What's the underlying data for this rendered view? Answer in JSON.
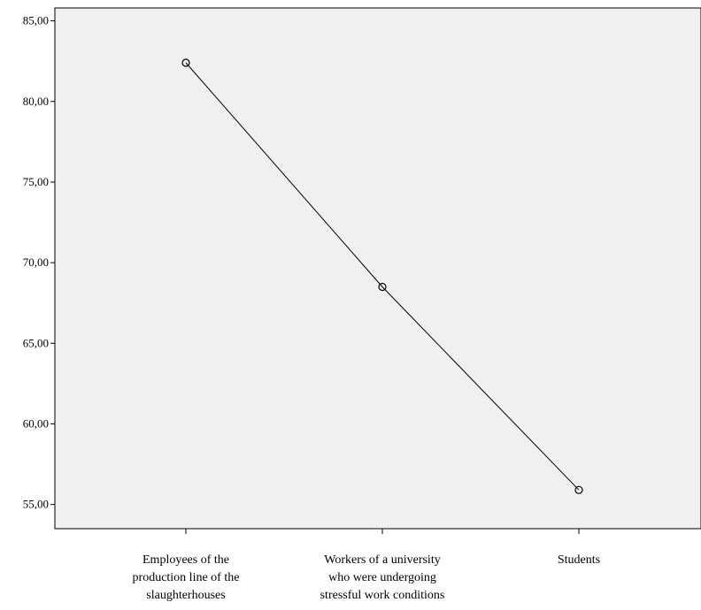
{
  "chart_data": {
    "type": "line",
    "title": "",
    "xlabel": "",
    "ylabel": "",
    "categories": [
      [
        "Employees of the",
        "production line of the",
        "slaughterhouses"
      ],
      [
        "Workers of a university",
        "who were undergoing",
        "stressful work conditions"
      ],
      [
        "Students"
      ]
    ],
    "series": [
      {
        "values": [
          82.4,
          68.5,
          55.9
        ]
      }
    ],
    "ylim": [
      53.5,
      85.8
    ],
    "yticks": [
      55,
      60,
      65,
      70,
      75,
      80,
      85
    ],
    "ytick_labels": [
      "55,00",
      "60,00",
      "65,00",
      "70,00",
      "75,00",
      "80,00",
      "85,00"
    ],
    "grid": false,
    "legend": "none",
    "markers": "open-circle",
    "colors": {
      "plot_background": "#f0f0f0",
      "line": "#000000",
      "axis": "#000000"
    }
  }
}
